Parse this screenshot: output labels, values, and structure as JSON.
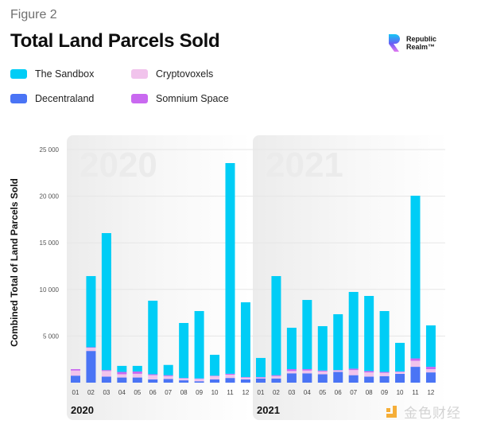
{
  "figure_label": "Figure 2",
  "logo": {
    "line1": "Republic",
    "line2": "Realm™"
  },
  "watermark": {
    "text": "金色财经"
  },
  "colors": {
    "sandbox": "#00cdf6",
    "decentraland": "#4a74f5",
    "cryptovoxels": "#f1c3ec",
    "somnium": "#c969f0",
    "panel": "#f2f2f2",
    "grid": "#e6e6e6"
  },
  "chart_data": {
    "type": "bar",
    "stacked": true,
    "title": "Total Land Parcels Sold",
    "xlabel": "",
    "ylabel": "Combined Total of Land Parcels Sold",
    "ylim": [
      0,
      25000
    ],
    "yticks": [
      5000,
      10000,
      15000,
      20000,
      25000
    ],
    "ytick_labels": [
      "5 000",
      "10 000",
      "15 000",
      "20 000",
      "25 000"
    ],
    "grid": true,
    "legend_position": "top-left",
    "legend": [
      "The Sandbox",
      "Cryptovoxels",
      "Decentraland",
      "Somnium Space"
    ],
    "groups": [
      {
        "year": "2020",
        "watermark": "2020",
        "categories": [
          "01",
          "02",
          "03",
          "04",
          "05",
          "06",
          "07",
          "08",
          "09",
          "10",
          "11",
          "12"
        ]
      },
      {
        "year": "2021",
        "watermark": "2021",
        "categories": [
          "01",
          "02",
          "03",
          "04",
          "05",
          "06",
          "07",
          "08",
          "09",
          "10",
          "11",
          "12"
        ]
      }
    ],
    "series": [
      {
        "name": "Decentraland",
        "key": "decentraland",
        "values_2020": [
          750,
          3400,
          650,
          550,
          550,
          350,
          400,
          250,
          150,
          350,
          500,
          350
        ],
        "values_2021": [
          450,
          450,
          1000,
          1000,
          900,
          1150,
          800,
          650,
          700,
          950,
          1700,
          1100
        ]
      },
      {
        "name": "Cryptovoxels",
        "key": "cryptovoxels",
        "values_2020": [
          550,
          350,
          600,
          350,
          400,
          450,
          300,
          200,
          250,
          350,
          350,
          200
        ],
        "values_2021": [
          100,
          250,
          250,
          300,
          300,
          150,
          550,
          450,
          350,
          200,
          650,
          350
        ]
      },
      {
        "name": "Somnium Space",
        "key": "somnium",
        "values_2020": [
          150,
          50,
          100,
          250,
          250,
          100,
          100,
          50,
          50,
          50,
          100,
          50
        ],
        "values_2021": [
          50,
          100,
          200,
          150,
          100,
          50,
          150,
          150,
          100,
          50,
          250,
          250
        ]
      },
      {
        "name": "The Sandbox",
        "key": "sandbox",
        "values_2020": [
          0,
          7630,
          14690,
          650,
          600,
          7890,
          1100,
          5900,
          7230,
          2240,
          22600,
          8020
        ],
        "values_2021": [
          2050,
          10630,
          4440,
          7420,
          4760,
          5990,
          8230,
          8050,
          6530,
          3070,
          17450,
          4440
        ]
      }
    ]
  }
}
